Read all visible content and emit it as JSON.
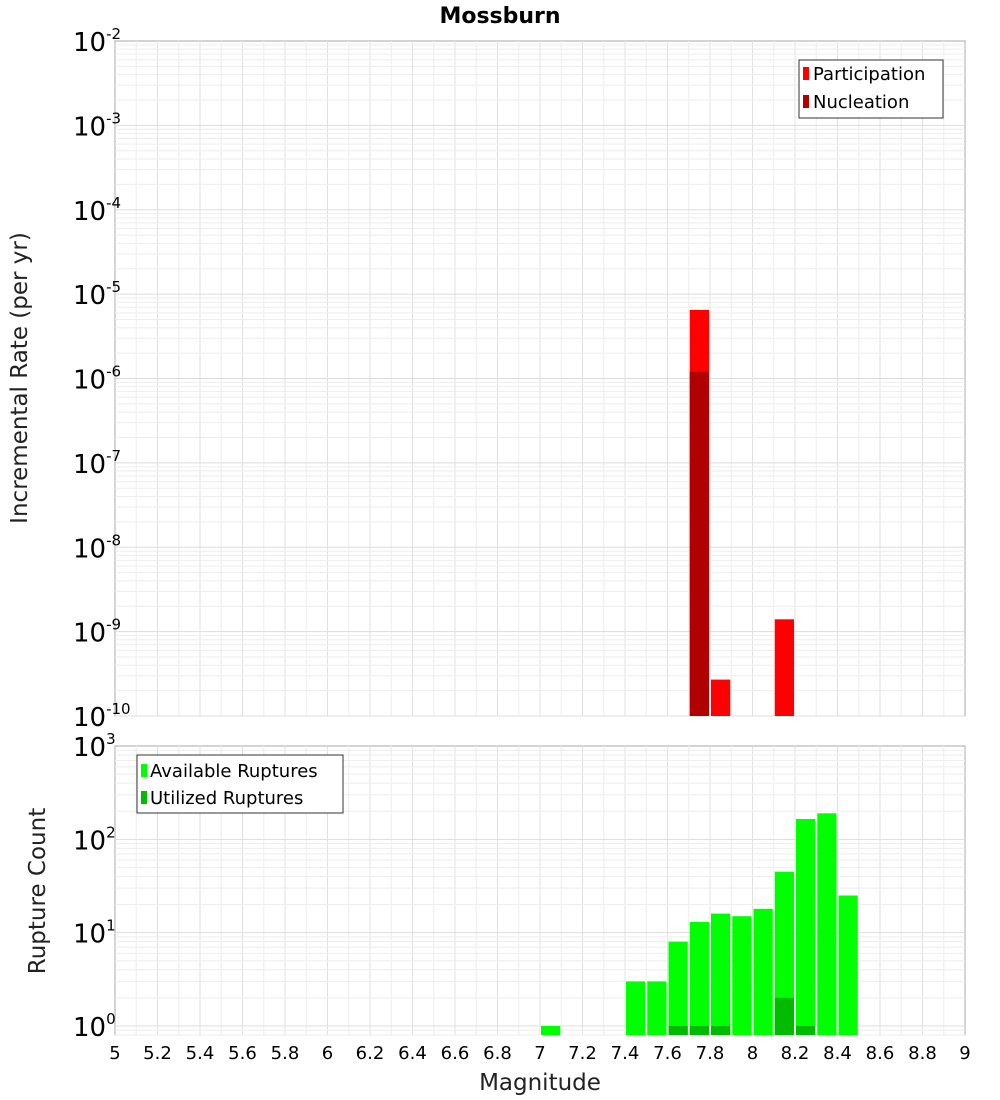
{
  "title": "Mossburn",
  "chart_data": [
    {
      "type": "bar",
      "ylabel": "Incremental Rate (per yr)",
      "yscale": "log",
      "ylim": [
        1e-10,
        0.01
      ],
      "xlim": [
        5,
        9
      ],
      "y_ticks": [
        {
          "base": "10",
          "exp": "-2"
        },
        {
          "base": "10",
          "exp": "-3"
        },
        {
          "base": "10",
          "exp": "-4"
        },
        {
          "base": "10",
          "exp": "-5"
        },
        {
          "base": "10",
          "exp": "-6"
        },
        {
          "base": "10",
          "exp": "-7"
        },
        {
          "base": "10",
          "exp": "-8"
        },
        {
          "base": "10",
          "exp": "-9"
        },
        {
          "base": "10",
          "exp": "-10"
        }
      ],
      "grid": true,
      "legend_position": "top-right",
      "bin_width": 0.1,
      "series": [
        {
          "name": "Participation",
          "color": "#ff0000",
          "points": [
            {
              "x": 7.75,
              "y": 6.5e-06
            },
            {
              "x": 7.85,
              "y": 2.7e-10
            },
            {
              "x": 8.15,
              "y": 1.4e-09
            }
          ]
        },
        {
          "name": "Nucleation",
          "color": "#b00000",
          "points": [
            {
              "x": 7.75,
              "y": 1.2e-06
            }
          ]
        }
      ]
    },
    {
      "type": "bar",
      "ylabel": "Rupture Count",
      "xlabel": "Magnitude",
      "yscale": "log",
      "ylim": [
        0.8,
        1000
      ],
      "xlim": [
        5,
        9
      ],
      "y_ticks": [
        {
          "base": "10",
          "exp": "3",
          "value": 1000
        },
        {
          "base": "10",
          "exp": "2",
          "value": 100
        },
        {
          "base": "10",
          "exp": "1",
          "value": 10
        },
        {
          "base": "10",
          "exp": "0",
          "value": 1
        }
      ],
      "x_ticks": [
        "5",
        "5.2",
        "5.4",
        "5.6",
        "5.8",
        "6",
        "6.2",
        "6.4",
        "6.6",
        "6.8",
        "7",
        "7.2",
        "7.4",
        "7.6",
        "7.8",
        "8",
        "8.2",
        "8.4",
        "8.6",
        "8.8",
        "9"
      ],
      "grid": true,
      "legend_position": "top-left",
      "bin_width": 0.1,
      "series": [
        {
          "name": "Available Ruptures",
          "color": "#00ff00",
          "points": [
            {
              "x": 7.05,
              "y": 1
            },
            {
              "x": 7.45,
              "y": 3
            },
            {
              "x": 7.55,
              "y": 3
            },
            {
              "x": 7.65,
              "y": 8
            },
            {
              "x": 7.75,
              "y": 13
            },
            {
              "x": 7.85,
              "y": 16
            },
            {
              "x": 7.95,
              "y": 15
            },
            {
              "x": 8.05,
              "y": 18
            },
            {
              "x": 8.15,
              "y": 45
            },
            {
              "x": 8.25,
              "y": 165
            },
            {
              "x": 8.35,
              "y": 190
            },
            {
              "x": 8.45,
              "y": 25
            }
          ]
        },
        {
          "name": "Utilized Ruptures",
          "color": "#00bb00",
          "points": [
            {
              "x": 7.65,
              "y": 1
            },
            {
              "x": 7.75,
              "y": 1
            },
            {
              "x": 7.85,
              "y": 1
            },
            {
              "x": 8.15,
              "y": 2
            },
            {
              "x": 8.25,
              "y": 1
            }
          ]
        }
      ]
    }
  ]
}
